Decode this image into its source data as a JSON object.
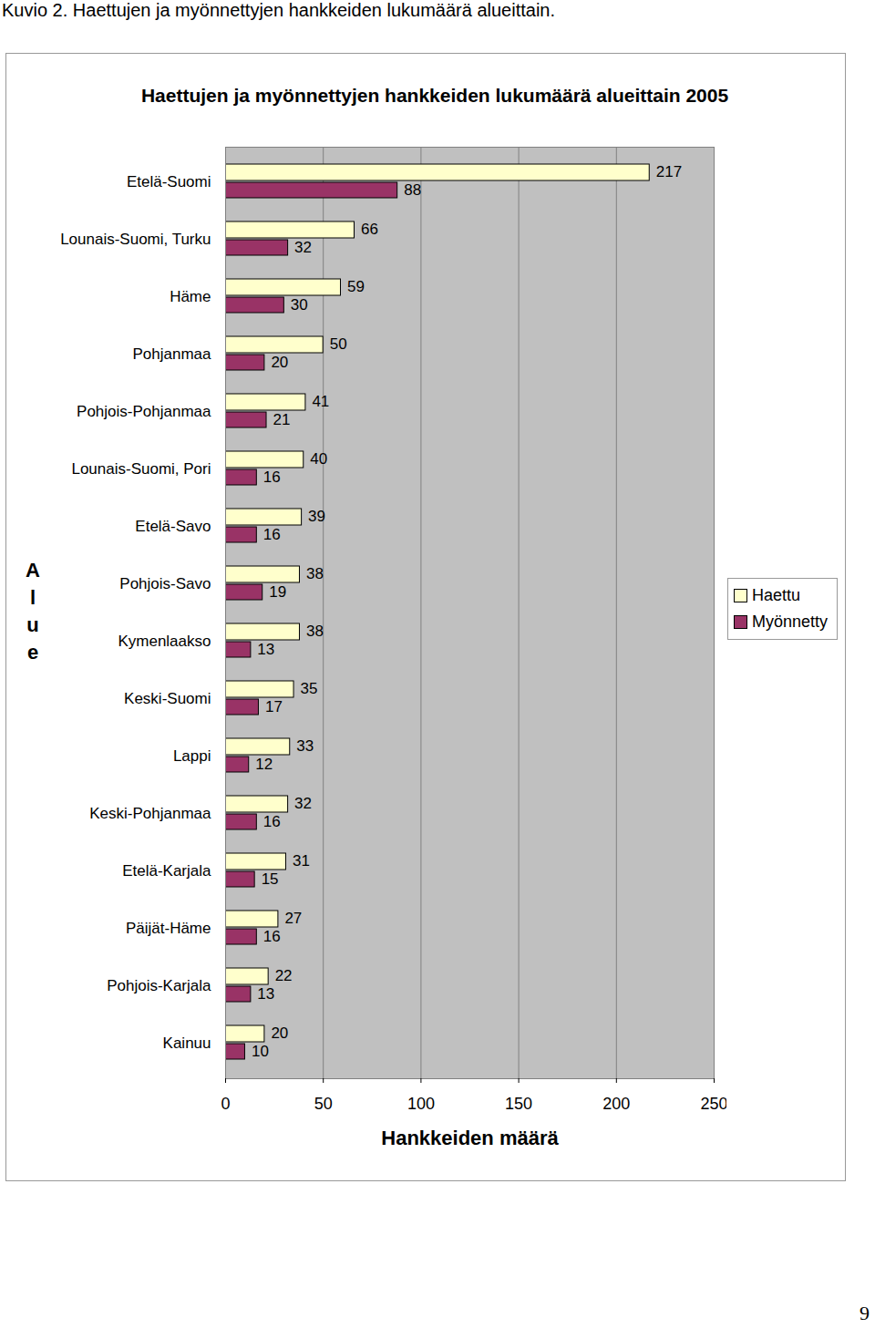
{
  "chart_data": {
    "type": "bar",
    "orientation": "horizontal",
    "caption": "Kuvio 2. Haettujen ja myönnettyjen hankkeiden lukumäärä alueittain.",
    "title": "Haettujen ja myönnettyjen hankkeiden lukumäärä alueittain 2005",
    "page_number": "9",
    "xlabel": "Hankkeiden määrä",
    "ylabel": "Alue",
    "categories": [
      "Etelä-Suomi",
      "Lounais-Suomi, Turku",
      "Häme",
      "Pohjanmaa",
      "Pohjois-Pohjanmaa",
      "Lounais-Suomi, Pori",
      "Etelä-Savo",
      "Pohjois-Savo",
      "Kymenlaakso",
      "Keski-Suomi",
      "Lappi",
      "Keski-Pohjanmaa",
      "Etelä-Karjala",
      "Päijät-Häme",
      "Pohjois-Karjala",
      "Kainuu"
    ],
    "series": [
      {
        "name": "Haettu",
        "color": "#ffffcc",
        "values": [
          217,
          66,
          59,
          50,
          41,
          40,
          39,
          38,
          38,
          35,
          33,
          32,
          31,
          27,
          22,
          20
        ]
      },
      {
        "name": "Myönnetty",
        "color": "#993366",
        "values": [
          88,
          32,
          30,
          20,
          21,
          16,
          16,
          19,
          13,
          17,
          12,
          16,
          15,
          16,
          13,
          10
        ]
      }
    ],
    "xlim": [
      0,
      250
    ],
    "xticks": [
      0,
      50,
      100,
      150,
      200,
      250
    ],
    "grid": true,
    "legend": "right",
    "data_labels": true
  }
}
